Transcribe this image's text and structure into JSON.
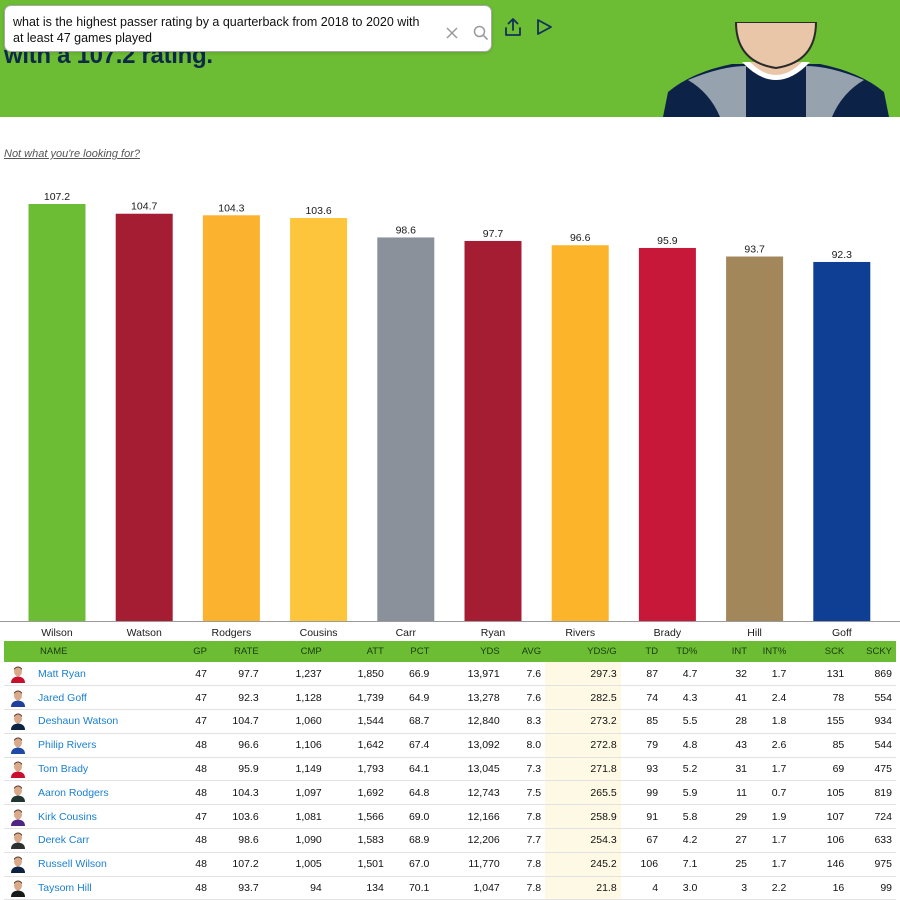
{
  "search": {
    "query": "what is the highest passer rating by a quarterback from 2018 to 2020 with at least 47 games played"
  },
  "hero": {
    "text": "with a 107.2 rating."
  },
  "not_what_link": "Not what you're looking for?",
  "colors": {
    "header_green": "#6cbd34",
    "link_blue": "#1a7fd1"
  },
  "chart_data": {
    "type": "bar",
    "categories": [
      "Wilson",
      "Watson",
      "Rodgers",
      "Cousins",
      "Carr",
      "Ryan",
      "Rivers",
      "Brady",
      "Hill",
      "Goff"
    ],
    "values": [
      107.2,
      104.7,
      104.3,
      103.6,
      98.6,
      97.7,
      96.6,
      95.9,
      93.7,
      92.3
    ],
    "colors": [
      "#6cbd34",
      "#a51d33",
      "#fbb22e",
      "#fdc53c",
      "#8a919b",
      "#a51d33",
      "#fcb42b",
      "#c8183a",
      "#a2875a",
      "#0f3f94"
    ],
    "ylim": [
      0,
      107.2
    ],
    "grid": false,
    "legend": "none"
  },
  "table": {
    "columns": [
      "NAME",
      "GP",
      "RATE",
      "CMP",
      "ATT",
      "PCT",
      "YDS",
      "AVG",
      "YDS/G",
      "TD",
      "TD%",
      "INT",
      "INT%",
      "SCK",
      "SCKY"
    ],
    "rows": [
      {
        "name": "Matt Ryan",
        "jersey": "#c8102e",
        "cells": [
          "47",
          "97.7",
          "1,237",
          "1,850",
          "66.9",
          "13,971",
          "7.6",
          "297.3",
          "87",
          "4.7",
          "32",
          "1.7",
          "131",
          "869"
        ]
      },
      {
        "name": "Jared Goff",
        "jersey": "#1e3f9c",
        "cells": [
          "47",
          "92.3",
          "1,128",
          "1,739",
          "64.9",
          "13,278",
          "7.6",
          "282.5",
          "74",
          "4.3",
          "41",
          "2.4",
          "78",
          "554"
        ]
      },
      {
        "name": "Deshaun Watson",
        "jersey": "#0b2242",
        "cells": [
          "47",
          "104.7",
          "1,060",
          "1,544",
          "68.7",
          "12,840",
          "8.3",
          "273.2",
          "85",
          "5.5",
          "28",
          "1.8",
          "155",
          "934"
        ]
      },
      {
        "name": "Philip Rivers",
        "jersey": "#1f4aa8",
        "cells": [
          "48",
          "96.6",
          "1,106",
          "1,642",
          "67.4",
          "13,092",
          "8.0",
          "272.8",
          "79",
          "4.8",
          "43",
          "2.6",
          "85",
          "544"
        ]
      },
      {
        "name": "Tom Brady",
        "jersey": "#c8102e",
        "cells": [
          "48",
          "95.9",
          "1,149",
          "1,793",
          "64.1",
          "13,045",
          "7.3",
          "271.8",
          "93",
          "5.2",
          "31",
          "1.7",
          "69",
          "475"
        ]
      },
      {
        "name": "Aaron Rodgers",
        "jersey": "#203731",
        "cells": [
          "48",
          "104.3",
          "1,097",
          "1,692",
          "64.8",
          "12,743",
          "7.5",
          "265.5",
          "99",
          "5.9",
          "11",
          "0.7",
          "105",
          "819"
        ]
      },
      {
        "name": "Kirk Cousins",
        "jersey": "#4f2683",
        "cells": [
          "47",
          "103.6",
          "1,081",
          "1,566",
          "69.0",
          "12,166",
          "7.8",
          "258.9",
          "91",
          "5.8",
          "29",
          "1.9",
          "107",
          "724"
        ]
      },
      {
        "name": "Derek Carr",
        "jersey": "#303030",
        "cells": [
          "48",
          "98.6",
          "1,090",
          "1,583",
          "68.9",
          "12,206",
          "7.7",
          "254.3",
          "67",
          "4.2",
          "27",
          "1.7",
          "106",
          "633"
        ]
      },
      {
        "name": "Russell Wilson",
        "jersey": "#0b2242",
        "cells": [
          "48",
          "107.2",
          "1,005",
          "1,501",
          "67.0",
          "11,770",
          "7.8",
          "245.2",
          "106",
          "7.1",
          "25",
          "1.7",
          "146",
          "975"
        ]
      },
      {
        "name": "Taysom Hill",
        "jersey": "#1a1a1a",
        "cells": [
          "48",
          "93.7",
          "94",
          "134",
          "70.1",
          "1,047",
          "7.8",
          "21.8",
          "4",
          "3.0",
          "3",
          "2.2",
          "16",
          "99"
        ]
      }
    ]
  }
}
